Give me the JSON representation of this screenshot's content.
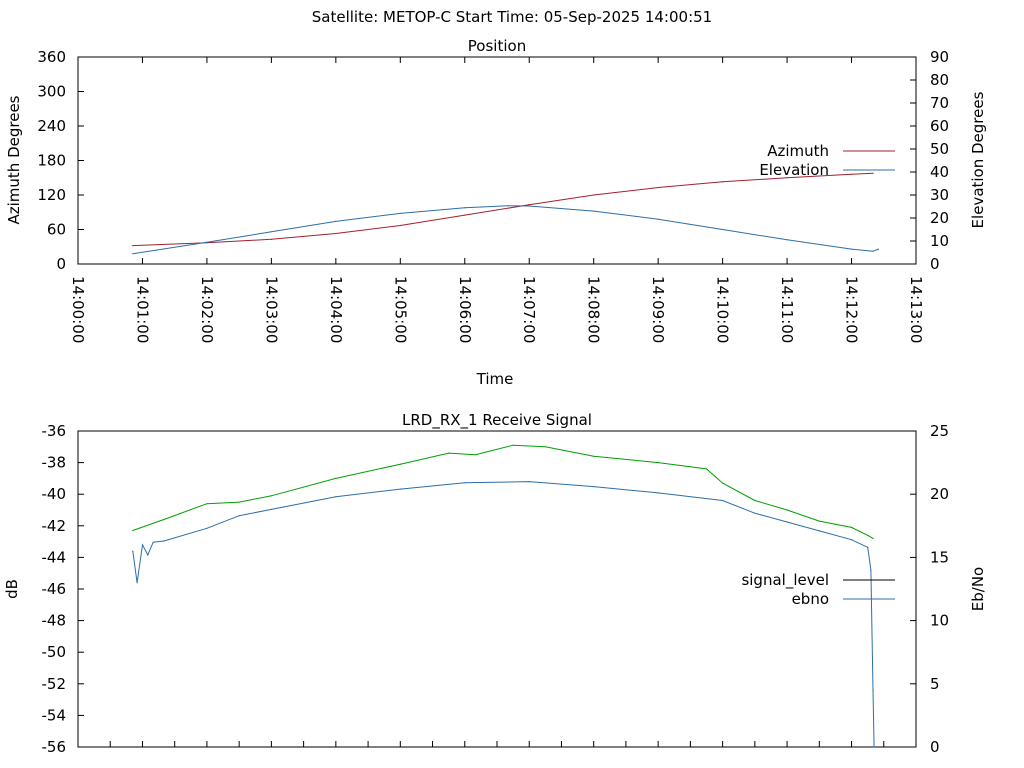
{
  "header": {
    "title": "Satellite: METOP-C    Start Time: 05-Sep-2025 14:00:51"
  },
  "colors": {
    "azimuth": "#a3202e",
    "elevation": "#2c6ea8",
    "signal_level": "#00a000",
    "ebno": "#2c6ea8",
    "legend_signal_level": "#000000"
  },
  "chart_data": [
    {
      "type": "line",
      "title": "Position",
      "xlabel": "Time",
      "ylabel": "Azimuth Degrees",
      "y2label": "Elevation Degrees",
      "xlim": [
        "14:00:00",
        "14:13:00"
      ],
      "ylim": [
        0,
        360
      ],
      "y2lim": [
        0,
        90
      ],
      "x_ticks": [
        "14:00:00",
        "14:01:00",
        "14:02:00",
        "14:03:00",
        "14:04:00",
        "14:05:00",
        "14:06:00",
        "14:07:00",
        "14:08:00",
        "14:09:00",
        "14:10:00",
        "14:11:00",
        "14:12:00",
        "14:13:00"
      ],
      "y_ticks": [
        "0",
        "60",
        "120",
        "180",
        "240",
        "300",
        "360"
      ],
      "y2_ticks": [
        "0",
        "10",
        "20",
        "30",
        "40",
        "50",
        "60",
        "70",
        "80",
        "90"
      ],
      "legend": "right",
      "series": [
        {
          "name": "Azimuth",
          "axis": "y",
          "x": [
            "14:00:51",
            "14:02:00",
            "14:03:00",
            "14:04:00",
            "14:05:00",
            "14:06:00",
            "14:07:00",
            "14:08:00",
            "14:09:00",
            "14:10:00",
            "14:11:00",
            "14:12:00",
            "14:12:20"
          ],
          "values": [
            32,
            37,
            43,
            53,
            67,
            85,
            103,
            120,
            133,
            143,
            150,
            156,
            158
          ]
        },
        {
          "name": "Elevation",
          "axis": "y2",
          "x": [
            "14:00:51",
            "14:02:00",
            "14:03:00",
            "14:04:00",
            "14:05:00",
            "14:06:00",
            "14:06:40",
            "14:07:00",
            "14:08:00",
            "14:09:00",
            "14:10:00",
            "14:11:00",
            "14:12:00",
            "14:12:20",
            "14:12:25"
          ],
          "values": [
            4.5,
            9.5,
            14,
            18.5,
            22,
            24.5,
            25.3,
            25.2,
            23,
            19.5,
            15,
            10.5,
            6.5,
            5.5,
            6.5
          ]
        }
      ]
    },
    {
      "type": "line",
      "title": "LRD_RX_1 Receive Signal",
      "xlabel": "",
      "ylabel": "dB",
      "y2label": "Eb/No",
      "ylim": [
        -56,
        -36
      ],
      "y2lim": [
        0,
        25
      ],
      "y_ticks": [
        "-36",
        "-38",
        "-40",
        "-42",
        "-44",
        "-46",
        "-48",
        "-50",
        "-52",
        "-54",
        "-56"
      ],
      "y2_ticks": [
        "0",
        "5",
        "10",
        "15",
        "20",
        "25"
      ],
      "legend": "right",
      "series": [
        {
          "name": "signal_level",
          "axis": "y",
          "x": [
            "14:00:51",
            "14:01:20",
            "14:02:00",
            "14:02:30",
            "14:03:00",
            "14:04:00",
            "14:05:00",
            "14:05:45",
            "14:06:10",
            "14:06:45",
            "14:07:15",
            "14:08:00",
            "14:09:00",
            "14:09:45",
            "14:10:00",
            "14:10:30",
            "14:11:00",
            "14:11:30",
            "14:12:00",
            "14:12:15",
            "14:12:20"
          ],
          "values": [
            -42.3,
            -41.6,
            -40.6,
            -40.5,
            -40.1,
            -39.0,
            -38.1,
            -37.4,
            -37.5,
            -36.9,
            -37.0,
            -37.6,
            -38.0,
            -38.4,
            -39.3,
            -40.4,
            -41.0,
            -41.7,
            -42.1,
            -42.6,
            -42.8
          ]
        },
        {
          "name": "ebno",
          "axis": "y2",
          "x": [
            "14:00:51",
            "14:00:55",
            "14:01:00",
            "14:01:05",
            "14:01:10",
            "14:01:20",
            "14:02:00",
            "14:02:30",
            "14:03:00",
            "14:04:00",
            "14:05:00",
            "14:06:00",
            "14:07:00",
            "14:08:00",
            "14:09:00",
            "14:10:00",
            "14:10:30",
            "14:11:00",
            "14:11:30",
            "14:12:00",
            "14:12:15",
            "14:12:18",
            "14:12:20",
            "14:12:21"
          ],
          "values": [
            15.5,
            13.0,
            16.0,
            15.2,
            16.2,
            16.3,
            17.3,
            18.3,
            18.8,
            19.8,
            20.4,
            20.9,
            21.0,
            20.6,
            20.1,
            19.5,
            18.5,
            17.8,
            17.1,
            16.4,
            15.8,
            14.0,
            4.5,
            0
          ]
        }
      ]
    }
  ]
}
